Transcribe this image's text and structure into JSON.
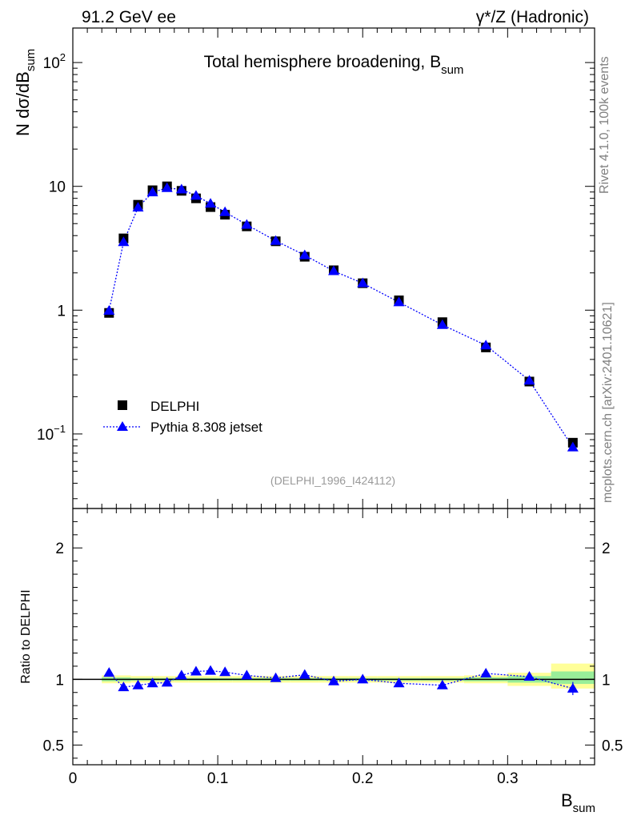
{
  "header": {
    "left": "91.2 GeV ee",
    "right": "γ*/Z (Hadronic)"
  },
  "side": {
    "rivet": "Rivet 4.1.0,  100k events",
    "source": "mcplots.cern.ch [arXiv:2401.10621]"
  },
  "chart_data": [
    {
      "type": "scatter",
      "panel": "main",
      "title": "Total hemisphere broadening, B_sum",
      "title_main": "Total hemisphere broadening, B",
      "title_sub": "sum",
      "ylabel": "N  dσ/dB_sum",
      "ylabel_main": "N  dσ/dB",
      "ylabel_sub": "sum",
      "yscale": "log",
      "xlim": [
        0,
        0.36
      ],
      "ylim": [
        0.025,
        190
      ],
      "ytick_labels": [
        {
          "value": 0.1,
          "base": "10",
          "exp": "−1"
        },
        {
          "value": 1,
          "base": "1",
          "exp": ""
        },
        {
          "value": 10,
          "base": "10",
          "exp": ""
        },
        {
          "value": 100,
          "base": "10",
          "exp": "2"
        }
      ],
      "analysis_id": "(DELPHI_1996_I424112)",
      "legend": {
        "position": "bottom-left",
        "entries": [
          "DELPHI",
          "Pythia 8.308 jetset"
        ]
      },
      "series": [
        {
          "name": "DELPHI",
          "marker": "square",
          "color": "#000000",
          "x": [
            0.025,
            0.035,
            0.045,
            0.055,
            0.065,
            0.075,
            0.085,
            0.095,
            0.105,
            0.12,
            0.14,
            0.16,
            0.18,
            0.2,
            0.225,
            0.255,
            0.285,
            0.315,
            0.345
          ],
          "y": [
            0.95,
            3.8,
            7.1,
            9.3,
            10.0,
            9.2,
            8.0,
            6.8,
            5.9,
            4.75,
            3.6,
            2.7,
            2.1,
            1.65,
            1.2,
            0.8,
            0.5,
            0.265,
            0.085
          ]
        },
        {
          "name": "Pythia 8.308 jetset",
          "marker": "triangle",
          "color": "#0000ff",
          "x": [
            0.025,
            0.035,
            0.045,
            0.055,
            0.065,
            0.075,
            0.085,
            0.095,
            0.105,
            0.12,
            0.14,
            0.16,
            0.18,
            0.2,
            0.225,
            0.255,
            0.285,
            0.315,
            0.345
          ],
          "y": [
            0.99,
            3.55,
            6.75,
            8.95,
            9.7,
            9.45,
            8.4,
            7.25,
            6.2,
            4.9,
            3.63,
            2.78,
            2.07,
            1.65,
            1.16,
            0.76,
            0.52,
            0.27,
            0.078
          ]
        }
      ]
    },
    {
      "type": "scatter",
      "panel": "ratio",
      "ylabel": "Ratio to DELPHI",
      "xlabel": "B_sum",
      "xlabel_main": "B",
      "xlabel_sub": "sum",
      "xlim": [
        0,
        0.36
      ],
      "ylim": [
        0.35,
        2.3
      ],
      "xticks": [
        0,
        0.1,
        0.2,
        0.3
      ],
      "xtick_labels": [
        "0",
        "0.1",
        "0.2",
        "0.3"
      ],
      "yticks": [
        0.5,
        1,
        2
      ],
      "ytick_labels": [
        "0.5",
        "1",
        "2"
      ],
      "reference_line": 1,
      "band_bins": [
        {
          "lo": 0.02,
          "hi": 0.03,
          "yellow": [
            0.97,
            1.03
          ],
          "green": [
            0.985,
            1.015
          ]
        },
        {
          "lo": 0.03,
          "hi": 0.04,
          "yellow": [
            0.97,
            1.03
          ],
          "green": [
            0.985,
            1.015
          ]
        },
        {
          "lo": 0.04,
          "hi": 0.05,
          "yellow": [
            0.975,
            1.025
          ],
          "green": [
            0.99,
            1.01
          ]
        },
        {
          "lo": 0.05,
          "hi": 0.06,
          "yellow": [
            0.975,
            1.025
          ],
          "green": [
            0.99,
            1.01
          ]
        },
        {
          "lo": 0.06,
          "hi": 0.07,
          "yellow": [
            0.975,
            1.025
          ],
          "green": [
            0.99,
            1.01
          ]
        },
        {
          "lo": 0.07,
          "hi": 0.08,
          "yellow": [
            0.975,
            1.025
          ],
          "green": [
            0.99,
            1.01
          ]
        },
        {
          "lo": 0.08,
          "hi": 0.09,
          "yellow": [
            0.975,
            1.025
          ],
          "green": [
            0.99,
            1.01
          ]
        },
        {
          "lo": 0.09,
          "hi": 0.1,
          "yellow": [
            0.975,
            1.025
          ],
          "green": [
            0.99,
            1.01
          ]
        },
        {
          "lo": 0.1,
          "hi": 0.11,
          "yellow": [
            0.975,
            1.025
          ],
          "green": [
            0.99,
            1.01
          ]
        },
        {
          "lo": 0.11,
          "hi": 0.13,
          "yellow": [
            0.975,
            1.025
          ],
          "green": [
            0.99,
            1.01
          ]
        },
        {
          "lo": 0.13,
          "hi": 0.15,
          "yellow": [
            0.975,
            1.025
          ],
          "green": [
            0.99,
            1.01
          ]
        },
        {
          "lo": 0.15,
          "hi": 0.17,
          "yellow": [
            0.975,
            1.025
          ],
          "green": [
            0.99,
            1.01
          ]
        },
        {
          "lo": 0.17,
          "hi": 0.19,
          "yellow": [
            0.975,
            1.025
          ],
          "green": [
            0.99,
            1.01
          ]
        },
        {
          "lo": 0.19,
          "hi": 0.21,
          "yellow": [
            0.975,
            1.025
          ],
          "green": [
            0.99,
            1.01
          ]
        },
        {
          "lo": 0.21,
          "hi": 0.24,
          "yellow": [
            0.975,
            1.025
          ],
          "green": [
            0.99,
            1.01
          ]
        },
        {
          "lo": 0.24,
          "hi": 0.27,
          "yellow": [
            0.975,
            1.025
          ],
          "green": [
            0.99,
            1.01
          ]
        },
        {
          "lo": 0.27,
          "hi": 0.3,
          "yellow": [
            0.97,
            1.03
          ],
          "green": [
            0.985,
            1.015
          ]
        },
        {
          "lo": 0.3,
          "hi": 0.33,
          "yellow": [
            0.95,
            1.05
          ],
          "green": [
            0.975,
            1.025
          ]
        },
        {
          "lo": 0.33,
          "hi": 0.36,
          "yellow": [
            0.93,
            1.12
          ],
          "green": [
            0.965,
            1.06
          ]
        }
      ],
      "series": [
        {
          "name": "Pythia 8.308 jetset",
          "marker": "triangle",
          "color": "#0000ff",
          "x": [
            0.025,
            0.035,
            0.045,
            0.055,
            0.065,
            0.075,
            0.085,
            0.095,
            0.105,
            0.12,
            0.14,
            0.16,
            0.18,
            0.2,
            0.225,
            0.255,
            0.285,
            0.315,
            0.345
          ],
          "y": [
            1.05,
            0.94,
            0.955,
            0.97,
            0.975,
            1.03,
            1.06,
            1.065,
            1.055,
            1.03,
            1.01,
            1.035,
            0.985,
            1.0,
            0.97,
            0.955,
            1.045,
            1.02,
            0.93
          ],
          "yerr": [
            0.03,
            0.015,
            0.01,
            0.01,
            0.01,
            0.01,
            0.01,
            0.01,
            0.01,
            0.01,
            0.01,
            0.01,
            0.01,
            0.01,
            0.01,
            0.01,
            0.015,
            0.02,
            0.05
          ]
        }
      ]
    }
  ]
}
